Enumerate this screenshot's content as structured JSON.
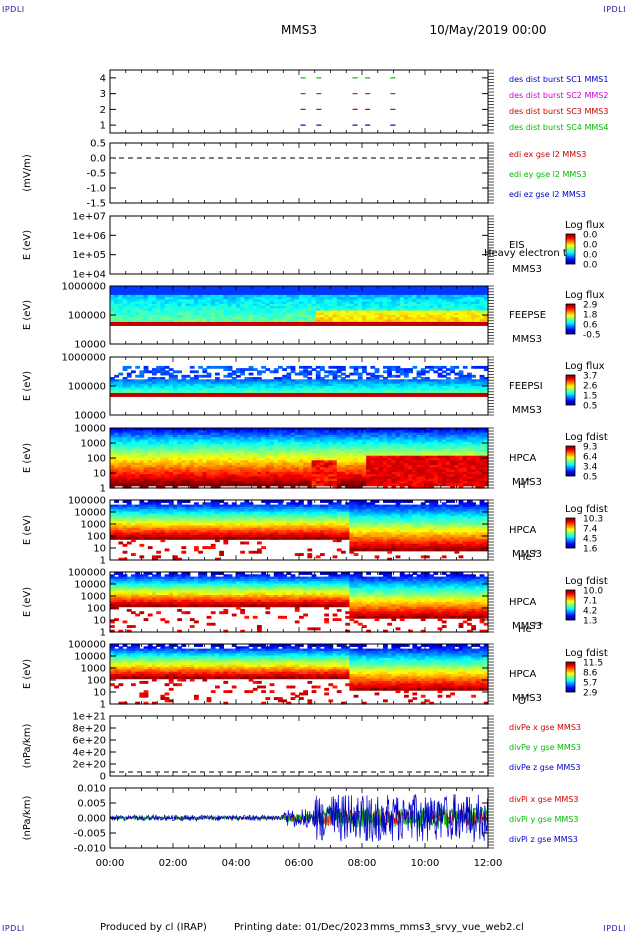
{
  "corner_label": "IPDLI",
  "header": {
    "mission": "MMS3",
    "datetime": "10/May/2019 00:00"
  },
  "footer": {
    "producer": "Produced by cl (IRAP)",
    "printing": "Printing date: 01/Dec/2023",
    "product": "mms_mms3_srvy_vue_web2.cl"
  },
  "chart_data": {
    "type": "heatmap",
    "time_axis": {
      "ticks": [
        "00:00",
        "02:00",
        "04:00",
        "06:00",
        "08:00",
        "10:00",
        "12:00"
      ],
      "range_hours": [
        0,
        12
      ]
    },
    "panels": [
      {
        "id": "burst",
        "kind": "burst",
        "ylabel": "",
        "yticks": [
          "4",
          "3",
          "2",
          "1"
        ],
        "legend": [
          {
            "text": "des dist burst SC1 MMS1",
            "color": "#0000cc"
          },
          {
            "text": "des dist burst SC2 MMS2",
            "color": "#cc00cc"
          },
          {
            "text": "des dist burst SC3 MMS3",
            "color": "#cc0000"
          },
          {
            "text": "des dist burst SC4 MMS4",
            "color": "#00bb00"
          }
        ],
        "bursts_hours": [
          6.05,
          6.55,
          7.7,
          8.1,
          8.9
        ]
      },
      {
        "id": "edi",
        "kind": "line",
        "ylabel": "(mV/m)",
        "yticks": [
          "0.5",
          "0.0",
          "-0.5",
          "-1.0",
          "-1.5"
        ],
        "ylim": [
          -1.5,
          0.5
        ],
        "dashed_zero": true,
        "legend": [
          {
            "text": "edi ex gse l2 MMS3",
            "color": "#cc0000"
          },
          {
            "text": "edi ey gse l2 MMS3",
            "color": "#00bb00"
          },
          {
            "text": "edi ez gse l2 MMS3",
            "color": "#0000cc"
          }
        ]
      },
      {
        "id": "eis",
        "kind": "spectro",
        "ylabel": "E (eV)",
        "yticks": [
          "1e+07",
          "1e+06",
          "1e+05",
          "1e+04"
        ],
        "inst": [
          "EIS",
          "MMS3"
        ],
        "overlay": "Heavy electron to",
        "cbar_title": "Log flux",
        "cbar_ticks": [
          "0.0",
          "0.0",
          "0.0",
          "0.0"
        ],
        "empty": true
      },
      {
        "id": "feepse",
        "kind": "spectro",
        "ylabel": "E (eV)",
        "yticks": [
          "1000000",
          "100000",
          "10000"
        ],
        "inst": [
          "FEEPSE",
          "MMS3"
        ],
        "cbar_title": "Log flux",
        "cbar_ticks": [
          "2.9",
          "1.8",
          "0.6",
          "-0.5"
        ]
      },
      {
        "id": "feepsi",
        "kind": "spectro",
        "ylabel": "E (eV)",
        "yticks": [
          "1000000",
          "100000",
          "10000"
        ],
        "inst": [
          "FEEPSI",
          "MMS3"
        ],
        "cbar_title": "Log flux",
        "cbar_ticks": [
          "3.7",
          "2.6",
          "1.5",
          "0.5"
        ]
      },
      {
        "id": "hpca_h",
        "kind": "spectro",
        "ylabel": "E (eV)",
        "yticks": [
          "10000",
          "1000",
          "100",
          "10",
          "1"
        ],
        "inst": [
          "HPCA",
          "MMS3"
        ],
        "species": "H",
        "species_sup": "+",
        "cbar_title": "Log fdist",
        "cbar_ticks": [
          "9.3",
          "6.4",
          "3.4",
          "0.5"
        ]
      },
      {
        "id": "hpca_he",
        "kind": "spectro",
        "ylabel": "E (eV)",
        "yticks": [
          "100000",
          "10000",
          "1000",
          "100",
          "10",
          "1"
        ],
        "inst": [
          "HPCA",
          "MMS3"
        ],
        "species": "He",
        "species_sup": "+",
        "cbar_title": "Log fdist",
        "cbar_ticks": [
          "10.3",
          "7.4",
          "4.5",
          "1.6"
        ]
      },
      {
        "id": "hpca_he2",
        "kind": "spectro",
        "ylabel": "E (eV)",
        "yticks": [
          "100000",
          "10000",
          "1000",
          "100",
          "10",
          "1"
        ],
        "inst": [
          "HPCA",
          "MMS3"
        ],
        "species": "He",
        "species_sup": "++",
        "cbar_title": "Log fdist",
        "cbar_ticks": [
          "10.0",
          "7.1",
          "4.2",
          "1.3"
        ]
      },
      {
        "id": "hpca_o",
        "kind": "spectro",
        "ylabel": "E (eV)",
        "yticks": [
          "100000",
          "10000",
          "1000",
          "100",
          "10",
          "1"
        ],
        "inst": [
          "HPCA",
          "MMS3"
        ],
        "species": "O",
        "species_sup": "+",
        "cbar_title": "Log fdist",
        "cbar_ticks": [
          "11.5",
          "8.6",
          "5.7",
          "2.9"
        ]
      },
      {
        "id": "divpe",
        "kind": "line",
        "ylabel": "(nPa/km)",
        "yticks": [
          "1e+21",
          "8e+20",
          "6e+20",
          "4e+20",
          "2e+20",
          "0"
        ],
        "ylim": [
          0,
          1e+21
        ],
        "dashed_zero": true,
        "legend": [
          {
            "text": "divPe x gse MMS3",
            "color": "#cc0000"
          },
          {
            "text": "divPe y gse MMS3",
            "color": "#00bb00"
          },
          {
            "text": "divPe z gse MMS3",
            "color": "#0000cc"
          }
        ]
      },
      {
        "id": "divpi",
        "kind": "line",
        "ylabel": "(nPa/km)",
        "yticks": [
          "0.010",
          "0.005",
          "0.000",
          "-0.005",
          "-0.010"
        ],
        "ylim": [
          -0.012,
          0.012
        ],
        "legend": [
          {
            "text": "divPi x gse MMS3",
            "color": "#cc0000"
          },
          {
            "text": "divPi y gse MMS3",
            "color": "#00bb00"
          },
          {
            "text": "divPi z gse MMS3",
            "color": "#0000cc"
          }
        ]
      }
    ]
  }
}
